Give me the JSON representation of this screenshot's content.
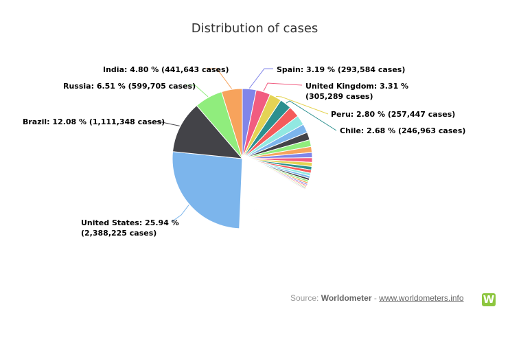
{
  "chart_data": {
    "type": "pie",
    "title": "Distribution of cases",
    "series": [
      {
        "name": "United States",
        "percent": 25.94,
        "cases": "2,388,225",
        "color": "#7cb5ec"
      },
      {
        "name": "Brazil",
        "percent": 12.08,
        "cases": "1,111,348",
        "color": "#434348"
      },
      {
        "name": "Russia",
        "percent": 6.51,
        "cases": "599,705",
        "color": "#90ed7d"
      },
      {
        "name": "India",
        "percent": 4.8,
        "cases": "441,643",
        "color": "#f7a35c"
      },
      {
        "name": "Spain",
        "percent": 3.19,
        "cases": "293,584",
        "color": "#8085e9"
      },
      {
        "name": "United Kingdom",
        "percent": 3.31,
        "cases": "305,289",
        "color": "#f15c80"
      },
      {
        "name": "Peru",
        "percent": 2.8,
        "cases": "257,447",
        "color": "#e4d354"
      },
      {
        "name": "Chile",
        "percent": 2.68,
        "cases": "246,963",
        "color": "#2b908f"
      }
    ],
    "labels": [
      {
        "line1": "India: 4.80 % (441,643 cases)",
        "line2": ""
      },
      {
        "line1": "Spain: 3.19 % (293,584 cases)",
        "line2": ""
      },
      {
        "line1": "United Kingdom: 3.31 %",
        "line2": "(305,289 cases)"
      },
      {
        "line1": "Russia: 6.51 % (599,705 cases)",
        "line2": ""
      },
      {
        "line1": "Peru: 2.80 % (257,447 cases)",
        "line2": ""
      },
      {
        "line1": "Chile: 2.68 % (246,963 cases)",
        "line2": ""
      },
      {
        "line1": "Brazil: 12.08 % (1,111,348 cases)",
        "line2": ""
      },
      {
        "line1": "United States: 25.94 %",
        "line2": "(2,388,225 cases)"
      }
    ],
    "palette": [
      "#7cb5ec",
      "#434348",
      "#90ed7d",
      "#f7a35c",
      "#8085e9",
      "#f15c80",
      "#e4d354",
      "#2b908f",
      "#f45b5b",
      "#91e8e1"
    ]
  },
  "footer": {
    "source_prefix": "Source:",
    "source_name": "Worldometer",
    "separator": "-",
    "link_text": "www.worldometers.info",
    "logo_letter": "W",
    "logo_color": "#8dc63f"
  }
}
